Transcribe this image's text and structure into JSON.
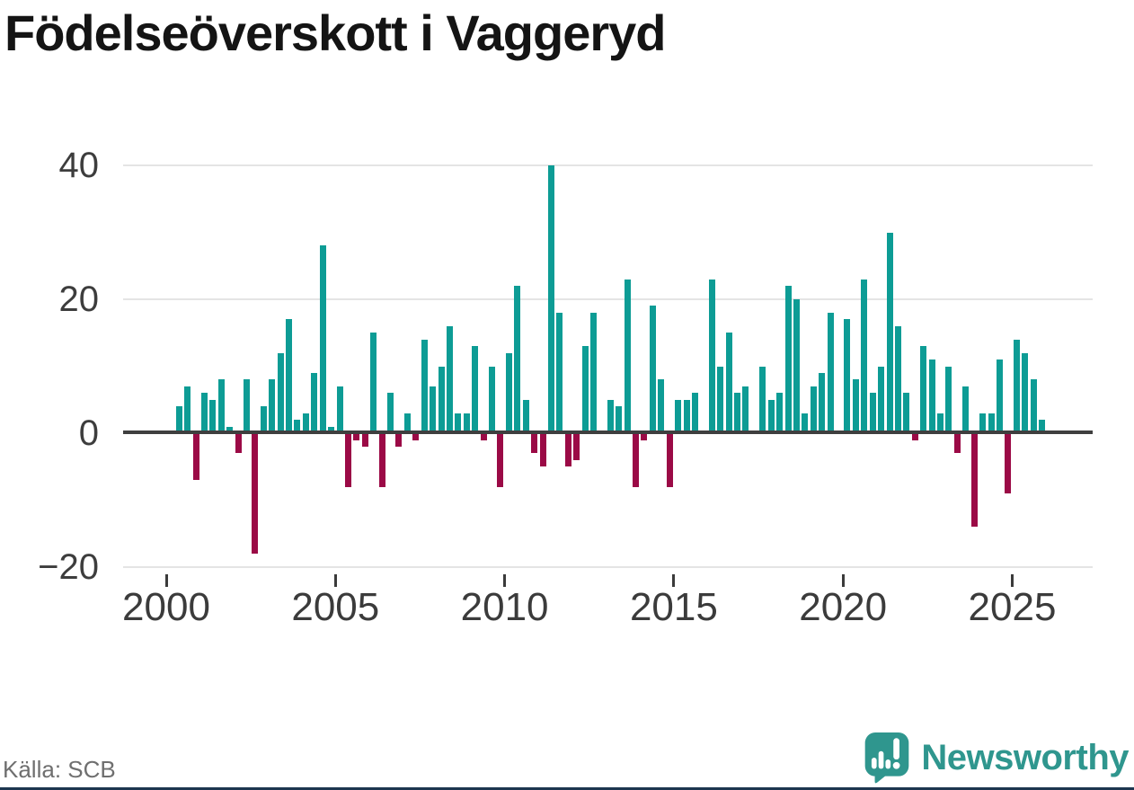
{
  "title": "Födelseöverskott i Vaggeryd",
  "source": "Källa: SCB",
  "logo": {
    "text": "Newsworthy",
    "icon": "speech-bubble-bar-chart-icon",
    "color": "#2f968e"
  },
  "colors": {
    "positive_bar": "#0d9c95",
    "negative_bar": "#9b0a46",
    "zero_axis": "#3f3f3f",
    "gridline": "#e4e4e4",
    "axis_text": "#3b3b3b",
    "bottom_strip": "#1d364f"
  },
  "chart_data": {
    "type": "bar",
    "title": "Födelseöverskott i Vaggeryd",
    "xlabel": "",
    "ylabel": "",
    "frequency": "quarterly",
    "start_quarter": "2000-Q2",
    "end_quarter": "2025-Q4",
    "ylim": [
      -20,
      40
    ],
    "y_gridlines": [
      40,
      20,
      0,
      -20
    ],
    "y_tick_labels": [
      "40",
      "20",
      "0",
      "−20"
    ],
    "x_tick_years": [
      2000,
      2005,
      2010,
      2015,
      2020,
      2025
    ],
    "legend": "none",
    "series_name": "Födelseöverskott",
    "note": "2000 begins at Q2; zeros render as no bar",
    "values_by_year": {
      "2000": [
        4,
        7,
        -7
      ],
      "2001": [
        6,
        5,
        8,
        1
      ],
      "2002": [
        -3,
        8,
        -18,
        4
      ],
      "2003": [
        8,
        12,
        17,
        2
      ],
      "2004": [
        3,
        9,
        28,
        1
      ],
      "2005": [
        7,
        -8,
        -1,
        -2
      ],
      "2006": [
        15,
        -8,
        6,
        -2
      ],
      "2007": [
        3,
        -1,
        14,
        7
      ],
      "2008": [
        10,
        16,
        3,
        3
      ],
      "2009": [
        13,
        -1,
        10,
        -8
      ],
      "2010": [
        12,
        22,
        5,
        -3
      ],
      "2011": [
        -5,
        40,
        18,
        -5
      ],
      "2012": [
        -4,
        13,
        18,
        0
      ],
      "2013": [
        5,
        4,
        23,
        -8
      ],
      "2014": [
        -1,
        19,
        8,
        -8
      ],
      "2015": [
        5,
        5,
        6,
        0
      ],
      "2016": [
        23,
        10,
        15,
        6
      ],
      "2017": [
        7,
        0,
        10,
        5
      ],
      "2018": [
        6,
        22,
        20,
        3
      ],
      "2019": [
        7,
        9,
        18,
        0
      ],
      "2020": [
        17,
        8,
        23,
        6
      ],
      "2021": [
        10,
        30,
        16,
        6
      ],
      "2022": [
        -1,
        13,
        11,
        3
      ],
      "2023": [
        10,
        -3,
        7,
        -14
      ],
      "2024": [
        3,
        3,
        11,
        -9
      ],
      "2025": [
        14,
        12,
        8,
        2
      ]
    }
  }
}
